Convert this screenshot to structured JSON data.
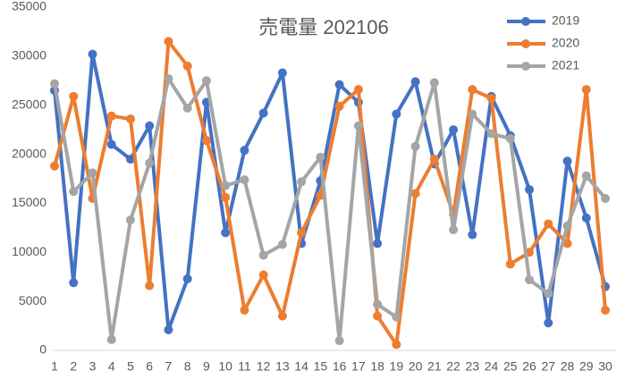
{
  "chart_data": {
    "type": "line",
    "title": "売電量 202106",
    "categories": [
      "1",
      "2",
      "3",
      "4",
      "5",
      "6",
      "7",
      "8",
      "9",
      "10",
      "11",
      "12",
      "13",
      "14",
      "15",
      "16",
      "17",
      "18",
      "19",
      "20",
      "21",
      "22",
      "23",
      "24",
      "25",
      "26",
      "27",
      "28",
      "29",
      "30"
    ],
    "series": [
      {
        "name": "2019",
        "color": "#4472c4",
        "values": [
          26500,
          6900,
          30200,
          21000,
          19500,
          22900,
          2100,
          7300,
          25300,
          12000,
          20400,
          24200,
          28300,
          10900,
          17300,
          27100,
          25300,
          10900,
          24100,
          27400,
          19000,
          22500,
          11800,
          25900,
          21900,
          16400,
          2800,
          19300,
          13500,
          6500
        ]
      },
      {
        "name": "2020",
        "color": "#ed7d31",
        "values": [
          18800,
          25900,
          15500,
          23900,
          23600,
          6600,
          31500,
          29000,
          21400,
          15600,
          4100,
          7700,
          3500,
          12000,
          15800,
          24900,
          26600,
          3500,
          600,
          16000,
          19500,
          13900,
          26600,
          25700,
          8800,
          10000,
          12900,
          10900,
          26600,
          4100
        ]
      },
      {
        "name": "2021",
        "color": "#a5a5a5",
        "values": [
          27200,
          16200,
          18100,
          1100,
          13300,
          19100,
          27700,
          24700,
          27500,
          16800,
          17400,
          9700,
          10800,
          17200,
          19700,
          1000,
          22900,
          4700,
          3400,
          20800,
          27300,
          12300,
          24100,
          22100,
          21600,
          7200,
          5800,
          12700,
          17800,
          15500
        ]
      }
    ],
    "ylim": [
      0,
      35000
    ],
    "yticks": [
      0,
      5000,
      10000,
      15000,
      20000,
      25000,
      30000,
      35000
    ],
    "grid": false,
    "legend": "top-right"
  }
}
